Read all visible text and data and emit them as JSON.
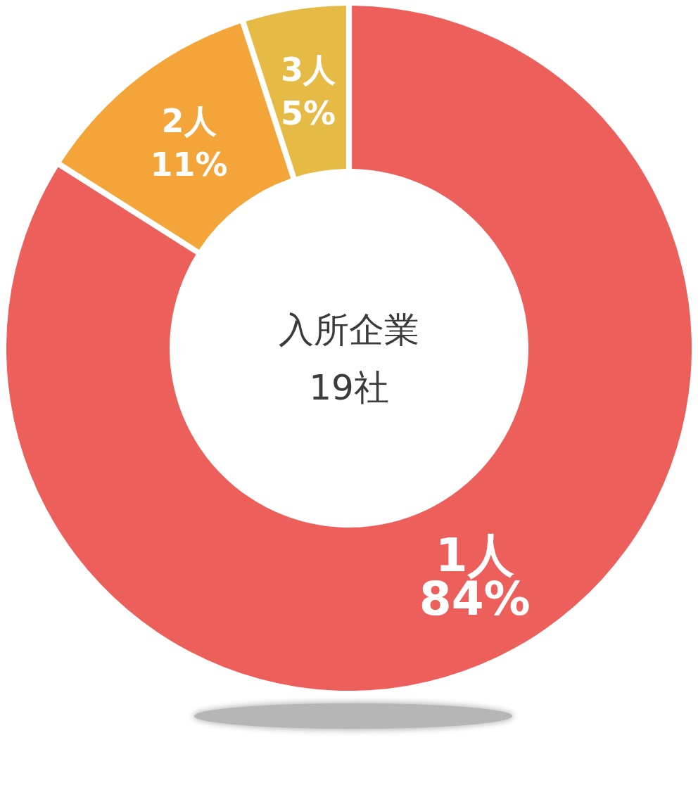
{
  "chart_data": {
    "type": "donut",
    "categories": [
      "1人",
      "2人",
      "3人"
    ],
    "values": [
      84,
      11,
      5
    ],
    "value_labels": [
      "84%",
      "11%",
      "5%"
    ],
    "colors": [
      "#ec5f5a",
      "#f4a53a",
      "#e6bb45"
    ],
    "annotations": [
      "入所企業",
      "19社"
    ]
  }
}
